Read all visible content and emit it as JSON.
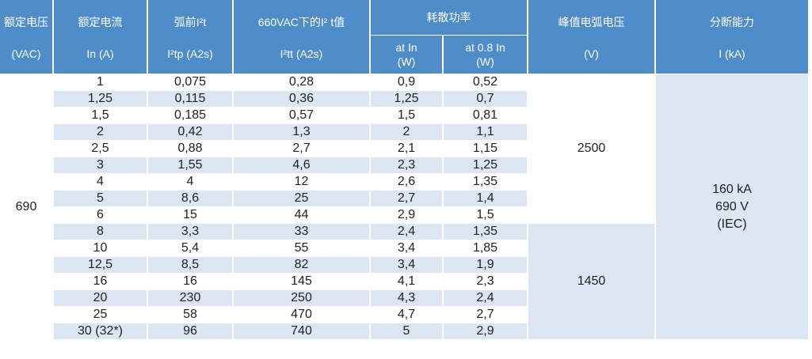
{
  "header": {
    "columns": [
      {
        "title": "额定电压",
        "unit": "(VAC)"
      },
      {
        "title": "额定电流",
        "unit": "In (A)"
      },
      {
        "title": "弧前I²t",
        "unit": "I²tp (A2s)"
      },
      {
        "title": "660VAC下的I² t值",
        "unit": "I²tt (A2s)"
      },
      {
        "title": "峰值电弧电压",
        "unit": "(V)"
      },
      {
        "title": "分断能力",
        "unit": "I (kA)"
      }
    ],
    "group": "耗散功率",
    "subcolumns": [
      {
        "title": "at In",
        "unit": "(W)"
      },
      {
        "title": "at 0.8  In",
        "unit": "(W)"
      }
    ]
  },
  "table": {
    "rated_voltage": "690",
    "arc_voltage": [
      "2500",
      "1450"
    ],
    "breaking_capacity": [
      "160 kA",
      "690 V",
      "(IEC)"
    ],
    "rows": [
      [
        "1",
        "0,075",
        "0,28",
        "0,9",
        "0,52"
      ],
      [
        "1,25",
        "0,115",
        "0,36",
        "1,25",
        "0,7"
      ],
      [
        "1,5",
        "0,185",
        "0,57",
        "1,5",
        "0,81"
      ],
      [
        "2",
        "0,42",
        "1,3",
        "2",
        "1,1"
      ],
      [
        "2,5",
        "0,88",
        "2,7",
        "2,1",
        "1,15"
      ],
      [
        "3",
        "1,55",
        "4,6",
        "2,3",
        "1,25"
      ],
      [
        "4",
        "4",
        "12",
        "2,6",
        "1,35"
      ],
      [
        "5",
        "8,6",
        "25",
        "2,7",
        "1,4"
      ],
      [
        "6",
        "15",
        "44",
        "2,9",
        "1,5"
      ],
      [
        "8",
        "3,3",
        "33",
        "2,4",
        "1,35"
      ],
      [
        "10",
        "5,4",
        "55",
        "3,4",
        "1,85"
      ],
      [
        "12,5",
        "8,5",
        "82",
        "3,4",
        "1,9"
      ],
      [
        "16",
        "16",
        "145",
        "4,1",
        "2,3"
      ],
      [
        "20",
        "230",
        "250",
        "4,3",
        "2,4"
      ],
      [
        "25",
        "58",
        "470",
        "4,7",
        "2,7"
      ],
      [
        "30 (32*)",
        "96",
        "740",
        "5",
        "2,9"
      ]
    ]
  }
}
